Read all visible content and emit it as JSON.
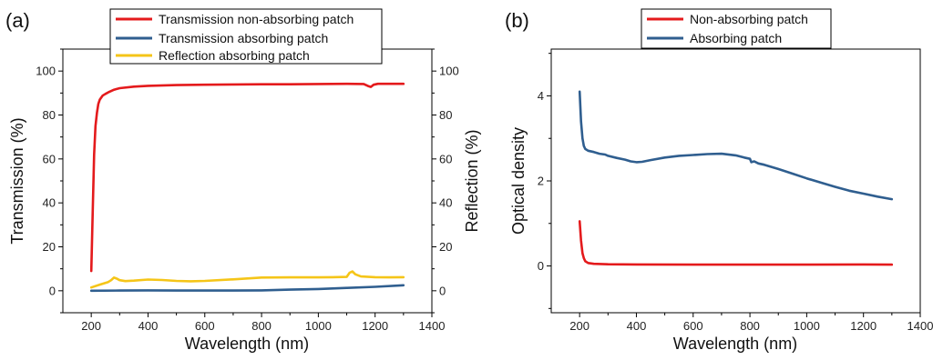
{
  "colors": {
    "red": "#e41a1c",
    "blue": "#2f5e8f",
    "yellow": "#f5c518",
    "axis": "#000000"
  },
  "chart_data": [
    {
      "panel_label": "(a)",
      "type": "line",
      "xlabel": "Wavelength (nm)",
      "ylabel": "Transmission (%)",
      "ylabel_right": "Reflection (%)",
      "xlim": [
        100,
        1400
      ],
      "ylim": [
        -10,
        110
      ],
      "xticks": [
        "200",
        "400",
        "600",
        "800",
        "1000",
        "1200",
        "1400"
      ],
      "yticks": [
        "0",
        "20",
        "40",
        "60",
        "80",
        "100"
      ],
      "yticks_right": [
        "0",
        "20",
        "40",
        "60",
        "80",
        "100"
      ],
      "grid": false,
      "legend": "top-center",
      "series": [
        {
          "name": "Transmission non-absorbing patch",
          "color": "#e41a1c",
          "x": [
            200,
            205,
            210,
            215,
            220,
            225,
            230,
            240,
            250,
            260,
            280,
            300,
            350,
            400,
            500,
            600,
            700,
            800,
            900,
            1000,
            1100,
            1160,
            1175,
            1185,
            1195,
            1210,
            1300
          ],
          "y": [
            9,
            35,
            62,
            75,
            81,
            85,
            87,
            88.8,
            89.6,
            90.3,
            91.5,
            92.2,
            92.9,
            93.3,
            93.6,
            93.8,
            93.9,
            94,
            94,
            94.1,
            94.2,
            94.1,
            93.2,
            92.8,
            93.8,
            94.2,
            94.2
          ]
        },
        {
          "name": "Transmission absorbing patch",
          "color": "#2f5e8f",
          "x": [
            200,
            300,
            400,
            500,
            600,
            700,
            800,
            900,
            1000,
            1100,
            1200,
            1300
          ],
          "y": [
            0,
            0.1,
            0.2,
            0.1,
            0.1,
            0.1,
            0.2,
            0.5,
            0.8,
            1.3,
            1.8,
            2.5
          ]
        },
        {
          "name": "Reflection absorbing patch",
          "color": "#f5c518",
          "x": [
            200,
            230,
            260,
            270,
            280,
            290,
            300,
            320,
            350,
            400,
            450,
            500,
            550,
            600,
            700,
            800,
            900,
            1000,
            1050,
            1100,
            1110,
            1120,
            1130,
            1150,
            1200,
            1250,
            1300
          ],
          "y": [
            1.5,
            2.8,
            4,
            4.8,
            6,
            5.5,
            4.8,
            4.4,
            4.6,
            5.1,
            4.9,
            4.5,
            4.3,
            4.5,
            5.2,
            6,
            6.1,
            6.1,
            6.2,
            6.3,
            8.2,
            8.8,
            7.5,
            6.5,
            6.2,
            6.1,
            6.2
          ]
        }
      ]
    },
    {
      "panel_label": "(b)",
      "type": "line",
      "xlabel": "Wavelength (nm)",
      "ylabel": "Optical density",
      "xlim": [
        100,
        1400
      ],
      "ylim": [
        -1.1,
        5.1
      ],
      "xticks": [
        "200",
        "400",
        "600",
        "800",
        "1000",
        "1200",
        "1400"
      ],
      "yticks": [
        "0",
        "2",
        "4"
      ],
      "grid": false,
      "legend": "top-center",
      "series": [
        {
          "name": "Non-absorbing patch",
          "color": "#e41a1c",
          "x": [
            200,
            205,
            210,
            215,
            220,
            230,
            250,
            300,
            400,
            600,
            800,
            1000,
            1200,
            1300
          ],
          "y": [
            1.05,
            0.6,
            0.3,
            0.18,
            0.11,
            0.07,
            0.05,
            0.04,
            0.035,
            0.03,
            0.03,
            0.03,
            0.035,
            0.03
          ]
        },
        {
          "name": "Absorbing patch",
          "color": "#2f5e8f",
          "x": [
            200,
            205,
            210,
            215,
            220,
            230,
            250,
            270,
            290,
            300,
            330,
            360,
            380,
            400,
            420,
            450,
            500,
            550,
            600,
            650,
            700,
            750,
            780,
            800,
            805,
            815,
            830,
            850,
            900,
            950,
            1000,
            1050,
            1100,
            1150,
            1200,
            1250,
            1300
          ],
          "y": [
            4.1,
            3.4,
            3.0,
            2.82,
            2.75,
            2.71,
            2.68,
            2.64,
            2.62,
            2.59,
            2.54,
            2.5,
            2.46,
            2.44,
            2.45,
            2.49,
            2.55,
            2.59,
            2.61,
            2.63,
            2.64,
            2.6,
            2.55,
            2.52,
            2.44,
            2.46,
            2.41,
            2.38,
            2.28,
            2.17,
            2.06,
            1.96,
            1.86,
            1.77,
            1.7,
            1.63,
            1.57
          ]
        }
      ]
    }
  ]
}
